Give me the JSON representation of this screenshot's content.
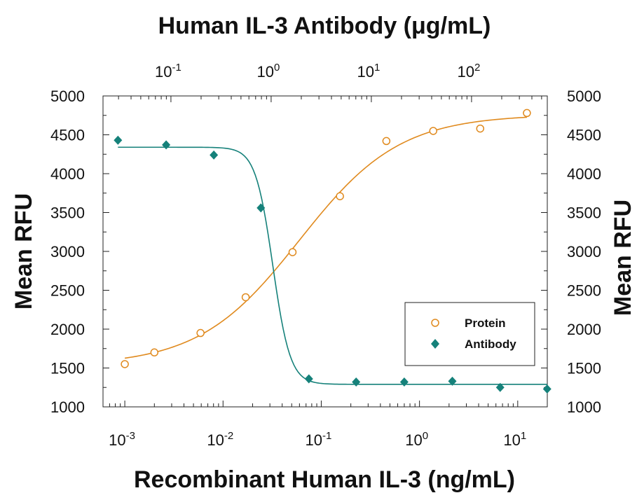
{
  "chart_data": {
    "type": "scatter",
    "title": "",
    "xlabel": "Recombinant Human IL-3 (ng/mL)",
    "x2label": "Human IL-3 Antibody (μg/mL)",
    "ylabel": "Mean RFU",
    "y2label": "Mean RFU",
    "xscale": "log",
    "x2scale": "log",
    "xlim": [
      0.0006,
      20
    ],
    "x2lim": [
      0.021,
      570
    ],
    "ylim": [
      1000,
      5000
    ],
    "grid": false,
    "legend_position": "lower-right",
    "x_ticks": [
      {
        "base": "10",
        "exp": "-3",
        "value": 0.001
      },
      {
        "base": "10",
        "exp": "-2",
        "value": 0.01
      },
      {
        "base": "10",
        "exp": "-1",
        "value": 0.1
      },
      {
        "base": "10",
        "exp": "0",
        "value": 1
      },
      {
        "base": "10",
        "exp": "1",
        "value": 10
      }
    ],
    "x2_ticks": [
      {
        "base": "10",
        "exp": "-1",
        "value": 0.1
      },
      {
        "base": "10",
        "exp": "0",
        "value": 1
      },
      {
        "base": "10",
        "exp": "1",
        "value": 10
      },
      {
        "base": "10",
        "exp": "2",
        "value": 100
      }
    ],
    "y_ticks": [
      "1000",
      "1500",
      "2000",
      "2500",
      "3000",
      "3500",
      "4000",
      "4500",
      "5000"
    ],
    "y_tick_values": [
      1000,
      1500,
      2000,
      2500,
      3000,
      3500,
      4000,
      4500,
      5000
    ],
    "series": [
      {
        "name": "Protein",
        "axis": "bottom",
        "color": "#e08a1e",
        "marker": "open-circle",
        "x": [
          0.001,
          0.002,
          0.0059,
          0.017,
          0.051,
          0.155,
          0.46,
          1.38,
          4.15,
          12.4
        ],
        "y": [
          1550,
          1700,
          1950,
          2410,
          2990,
          3710,
          4420,
          4550,
          4580,
          4780
        ],
        "fit": {
          "bottom": 1530,
          "top": 4760,
          "ec50": 0.06,
          "hill": 0.85
        }
      },
      {
        "name": "Antibody",
        "axis": "top",
        "color": "#15817a",
        "marker": "filled-diamond",
        "x": [
          0.0296,
          0.0896,
          0.268,
          0.79,
          2.38,
          7.05,
          21.3,
          64.3,
          193,
          568
        ],
        "y": [
          4430,
          4370,
          4240,
          3560,
          1360,
          1320,
          1320,
          1330,
          1250,
          1230
        ],
        "fit": {
          "bottom": 1290,
          "top": 4340,
          "ec50": 1.04,
          "hill": -5.0
        }
      }
    ]
  }
}
